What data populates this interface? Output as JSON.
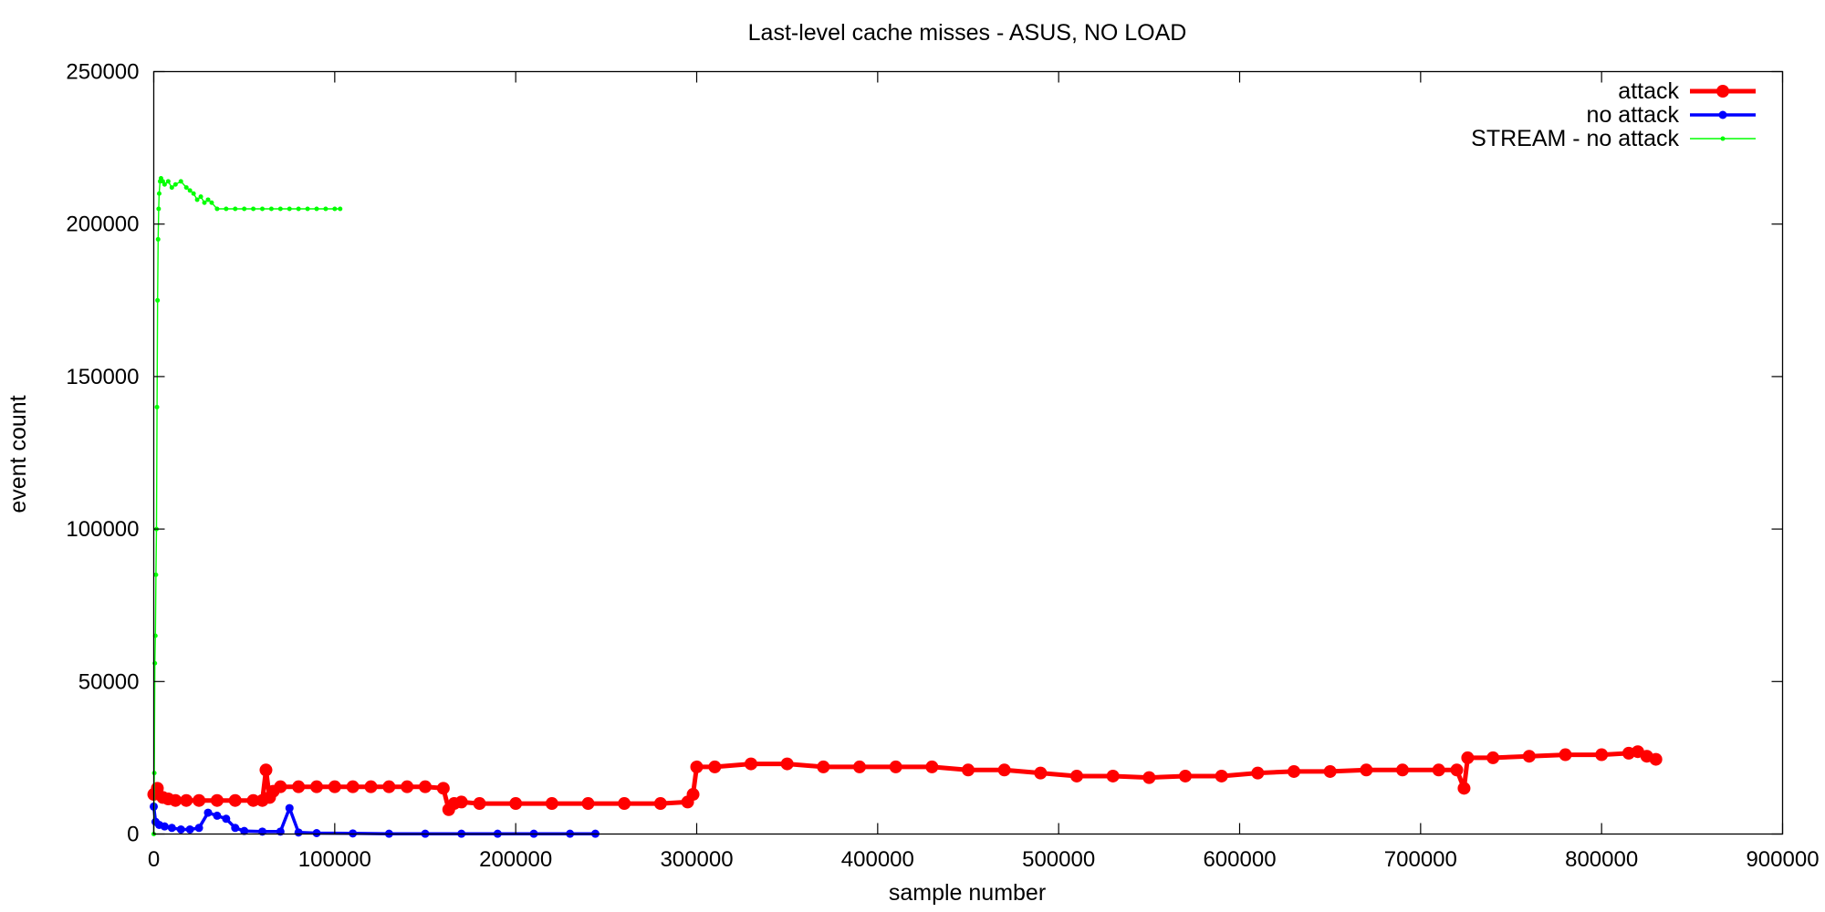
{
  "chart_data": {
    "type": "line",
    "title": "Last-level cache misses - ASUS, NO LOAD",
    "xlabel": "sample number",
    "ylabel": "event count",
    "xlim": [
      0,
      900000
    ],
    "ylim": [
      0,
      250000
    ],
    "x_ticks": [
      0,
      100000,
      200000,
      300000,
      400000,
      500000,
      600000,
      700000,
      800000,
      900000
    ],
    "y_ticks": [
      0,
      50000,
      100000,
      150000,
      200000,
      250000
    ],
    "x_tick_labels": [
      "0",
      "100000",
      "200000",
      "300000",
      "400000",
      "500000",
      "600000",
      "700000",
      "800000",
      "900000"
    ],
    "y_tick_labels": [
      "0",
      "50000",
      "100000",
      "150000",
      "200000",
      "250000"
    ],
    "grid": false,
    "legend_position": "top-right",
    "series": [
      {
        "name": "attack",
        "color": "#ff0000",
        "marker": "large-circle",
        "x": [
          0,
          2000,
          5000,
          8000,
          12000,
          18000,
          25000,
          35000,
          45000,
          55000,
          60000,
          62000,
          64000,
          66000,
          70000,
          80000,
          90000,
          100000,
          110000,
          120000,
          130000,
          140000,
          150000,
          160000,
          163000,
          166000,
          170000,
          180000,
          200000,
          220000,
          240000,
          260000,
          280000,
          295000,
          298000,
          300000,
          310000,
          330000,
          350000,
          370000,
          390000,
          410000,
          430000,
          450000,
          470000,
          490000,
          510000,
          530000,
          550000,
          570000,
          590000,
          610000,
          630000,
          650000,
          670000,
          690000,
          710000,
          720000,
          724000,
          726000,
          740000,
          760000,
          780000,
          800000,
          815000,
          820000,
          825000,
          830000
        ],
        "y": [
          13000,
          15000,
          12000,
          11500,
          11000,
          11000,
          11000,
          11000,
          11000,
          11000,
          11000,
          21000,
          12000,
          14000,
          15500,
          15500,
          15500,
          15500,
          15500,
          15500,
          15500,
          15500,
          15500,
          15000,
          8000,
          10000,
          10500,
          10000,
          10000,
          10000,
          10000,
          10000,
          10000,
          10500,
          13000,
          22000,
          22000,
          23000,
          23000,
          22000,
          22000,
          22000,
          22000,
          21000,
          21000,
          20000,
          19000,
          19000,
          18500,
          19000,
          19000,
          20000,
          20500,
          20500,
          21000,
          21000,
          21000,
          21000,
          15000,
          25000,
          25000,
          25500,
          26000,
          26000,
          26500,
          27000,
          25500,
          24500
        ]
      },
      {
        "name": "no attack",
        "color": "#0000ff",
        "marker": "circle",
        "x": [
          0,
          1000,
          3000,
          6000,
          10000,
          15000,
          20000,
          25000,
          30000,
          35000,
          40000,
          45000,
          50000,
          60000,
          70000,
          75000,
          80000,
          90000,
          110000,
          130000,
          150000,
          170000,
          190000,
          210000,
          230000,
          244000
        ],
        "y": [
          9000,
          4000,
          3000,
          2500,
          2000,
          1500,
          1500,
          2000,
          7000,
          6000,
          5000,
          2000,
          1000,
          800,
          800,
          8500,
          500,
          300,
          200,
          100,
          100,
          100,
          100,
          100,
          100,
          100
        ]
      },
      {
        "name": "STREAM - no attack",
        "color": "#00ff00",
        "marker": "small-dot",
        "x": [
          0,
          300,
          600,
          900,
          1200,
          1500,
          1800,
          2100,
          2400,
          2700,
          3000,
          3500,
          4000,
          5000,
          6000,
          8000,
          10000,
          12000,
          15000,
          18000,
          20000,
          22000,
          24000,
          26000,
          28000,
          30000,
          32000,
          35000,
          40000,
          45000,
          50000,
          55000,
          60000,
          65000,
          70000,
          75000,
          80000,
          85000,
          90000,
          95000,
          100000,
          103000
        ],
        "y": [
          0,
          20000,
          56000,
          65000,
          85000,
          100000,
          140000,
          175000,
          195000,
          205000,
          210000,
          214000,
          215000,
          214000,
          213000,
          214000,
          212000,
          213000,
          214000,
          212000,
          211000,
          210000,
          208000,
          209000,
          207000,
          208000,
          207000,
          205000,
          205000,
          205000,
          205000,
          205000,
          205000,
          205000,
          205000,
          205000,
          205000,
          205000,
          205000,
          205000,
          205000,
          205000
        ]
      }
    ]
  }
}
